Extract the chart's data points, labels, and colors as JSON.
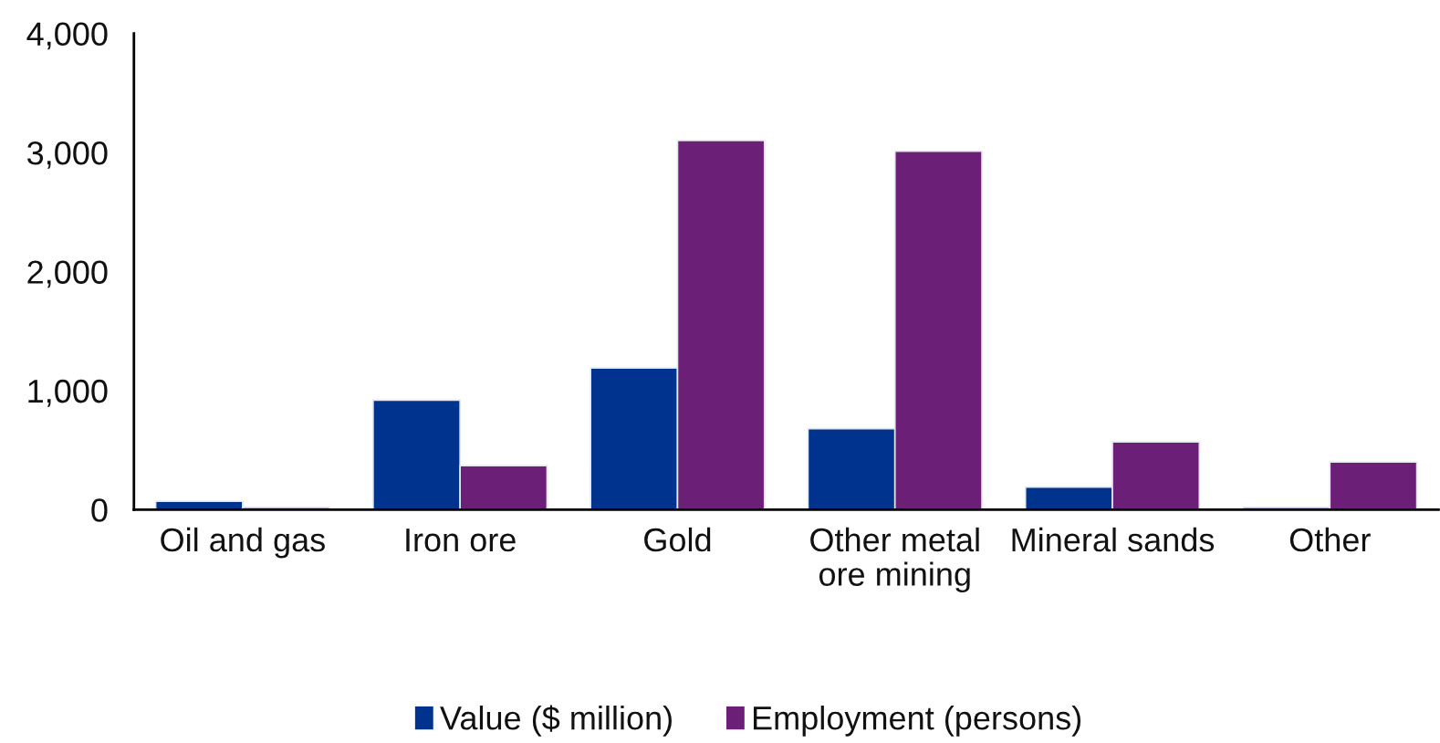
{
  "chart_data": {
    "type": "bar",
    "categories": [
      "Oil and gas",
      "Iron ore",
      "Gold",
      "Other metal ore mining",
      "Mineral sands",
      "Other"
    ],
    "series": [
      {
        "name": "Value ($ million)",
        "color": "#00338d",
        "values": [
          70,
          920,
          1190,
          680,
          190,
          20
        ]
      },
      {
        "name": "Employment (persons)",
        "color": "#6c1f76",
        "values": [
          20,
          370,
          3100,
          3010,
          570,
          400
        ]
      }
    ],
    "ylim": [
      0,
      4000
    ],
    "yticks": [
      0,
      {
        "value": 1000,
        "label": "1,000"
      },
      {
        "value": 2000,
        "label": "2,000"
      },
      {
        "value": 3000,
        "label": "3,000"
      },
      {
        "value": 4000,
        "label": "4,000"
      }
    ],
    "grid": false,
    "legend": "bottom"
  }
}
